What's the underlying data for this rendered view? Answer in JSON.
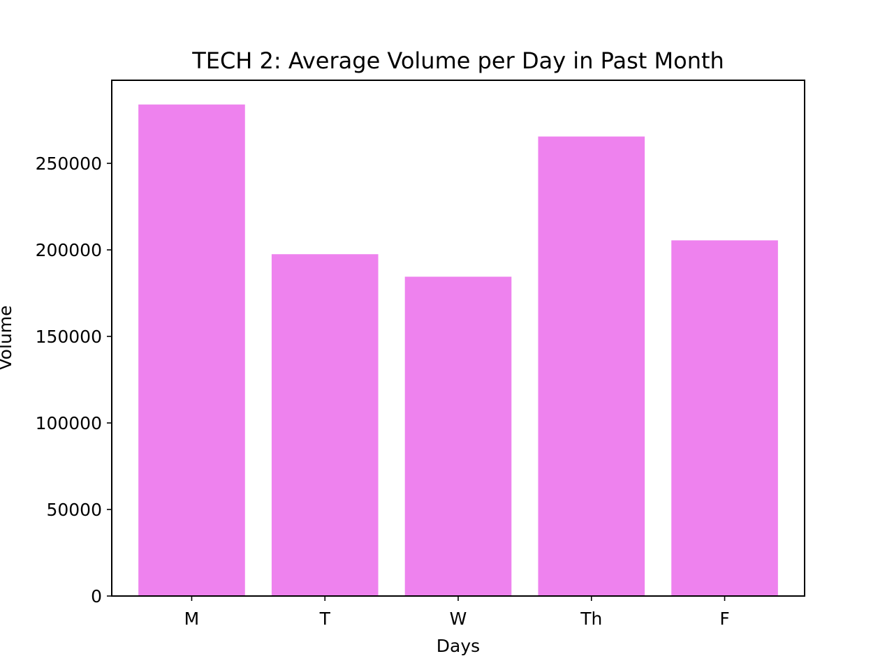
{
  "chart_data": {
    "type": "bar",
    "title": "TECH 2: Average Volume per Day in Past Month",
    "xlabel": "Days",
    "ylabel": "Volume",
    "categories": [
      "M",
      "T",
      "W",
      "Th",
      "F"
    ],
    "values": [
      284000,
      197500,
      184500,
      265500,
      205500
    ],
    "ylim": [
      0,
      298000
    ],
    "yticks": [
      0,
      50000,
      100000,
      150000,
      200000,
      250000
    ],
    "ytick_labels": [
      "0",
      "50000",
      "100000",
      "150000",
      "200000",
      "250000"
    ],
    "bar_color": "#ee82ee",
    "grid": false,
    "legend": "none"
  }
}
